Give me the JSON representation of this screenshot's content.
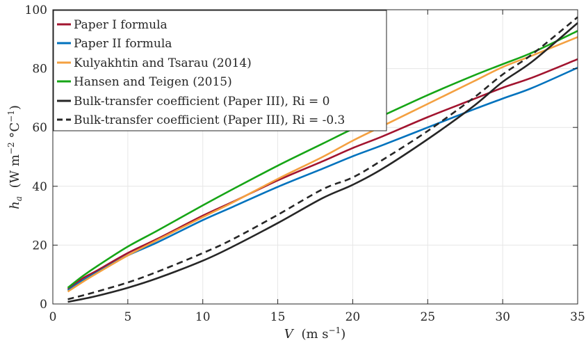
{
  "chart_data": {
    "type": "line",
    "xlabel_var": "V",
    "xlabel_unit": "(m s",
    "xlabel_exp": "−1",
    "xlabel_close": ")",
    "ylabel_var": "h",
    "ylabel_sub": "a",
    "ylabel_unit": "(W m",
    "ylabel_exp1": "−2",
    "ylabel_mid": "°C",
    "ylabel_exp2": "−1",
    "ylabel_close": ")",
    "xlim": [
      0,
      35
    ],
    "ylim": [
      0,
      100
    ],
    "xticks": [
      0,
      5,
      10,
      15,
      20,
      25,
      30,
      35
    ],
    "yticks": [
      0,
      20,
      40,
      60,
      80,
      100
    ],
    "grid": true,
    "legend_position": "top-left",
    "series": [
      {
        "name": "Paper I formula",
        "color": "#a2142f",
        "dash": "solid",
        "x": [
          1,
          2,
          3,
          5,
          7,
          10,
          12,
          15,
          18,
          20,
          22,
          25,
          28,
          30,
          32,
          35
        ],
        "y": [
          5.0,
          8.7,
          11.5,
          17.3,
          22.2,
          30.0,
          34.7,
          42.0,
          48.5,
          53.0,
          57.0,
          63.5,
          69.5,
          73.5,
          77.0,
          83.2
        ]
      },
      {
        "name": "Paper II formula",
        "color": "#0072bd",
        "dash": "solid",
        "x": [
          1,
          2,
          3,
          5,
          7,
          10,
          12,
          15,
          18,
          20,
          22,
          25,
          28,
          30,
          32,
          35
        ],
        "y": [
          4.6,
          8.0,
          10.9,
          16.5,
          21.0,
          28.5,
          33.0,
          39.8,
          46.0,
          50.2,
          54.0,
          60.0,
          66.0,
          69.8,
          73.5,
          80.3
        ]
      },
      {
        "name": "Kulyakhtin and Tsarau (2014)",
        "color": "#f4a040",
        "dash": "solid",
        "x": [
          1,
          2,
          3,
          5,
          7,
          10,
          12,
          15,
          18,
          20,
          22,
          25,
          28,
          30,
          32,
          35
        ],
        "y": [
          4.2,
          7.5,
          10.6,
          16.5,
          21.8,
          29.5,
          34.5,
          42.5,
          50.0,
          55.5,
          60.5,
          68.0,
          75.5,
          80.5,
          84.5,
          90.7
        ]
      },
      {
        "name": "Hansen and Teigen (2015)",
        "color": "#16a516",
        "dash": "solid",
        "x": [
          1,
          2,
          3,
          5,
          7,
          10,
          12,
          15,
          18,
          20,
          22,
          25,
          28,
          30,
          32,
          35
        ],
        "y": [
          5.5,
          9.5,
          13.0,
          19.5,
          25.0,
          33.5,
          39.0,
          47.0,
          54.5,
          59.5,
          64.0,
          71.0,
          77.5,
          81.5,
          85.5,
          92.8
        ]
      },
      {
        "name": "Bulk-transfer coefficient (Paper III), Ri = 0",
        "color": "#262626",
        "dash": "solid",
        "x": [
          1,
          2,
          3,
          5,
          7,
          10,
          12,
          15,
          18,
          20,
          22,
          25,
          28,
          30,
          32,
          35
        ],
        "y": [
          0.7,
          1.7,
          2.8,
          5.5,
          8.8,
          14.7,
          19.5,
          27.5,
          36.0,
          40.5,
          46.0,
          56.0,
          67.0,
          75.5,
          82.5,
          95.5
        ]
      },
      {
        "name": "Bulk-transfer coefficient (Paper III), Ri = -0.3",
        "color": "#262626",
        "dash": "dashed",
        "x": [
          1,
          2,
          3,
          5,
          7,
          10,
          12,
          15,
          18,
          20,
          22,
          25,
          28,
          30,
          32,
          35
        ],
        "y": [
          1.6,
          2.9,
          4.3,
          7.3,
          11.0,
          17.3,
          22.0,
          30.3,
          39.0,
          43.0,
          49.0,
          58.8,
          69.8,
          78.0,
          85.0,
          97.5
        ]
      }
    ]
  }
}
